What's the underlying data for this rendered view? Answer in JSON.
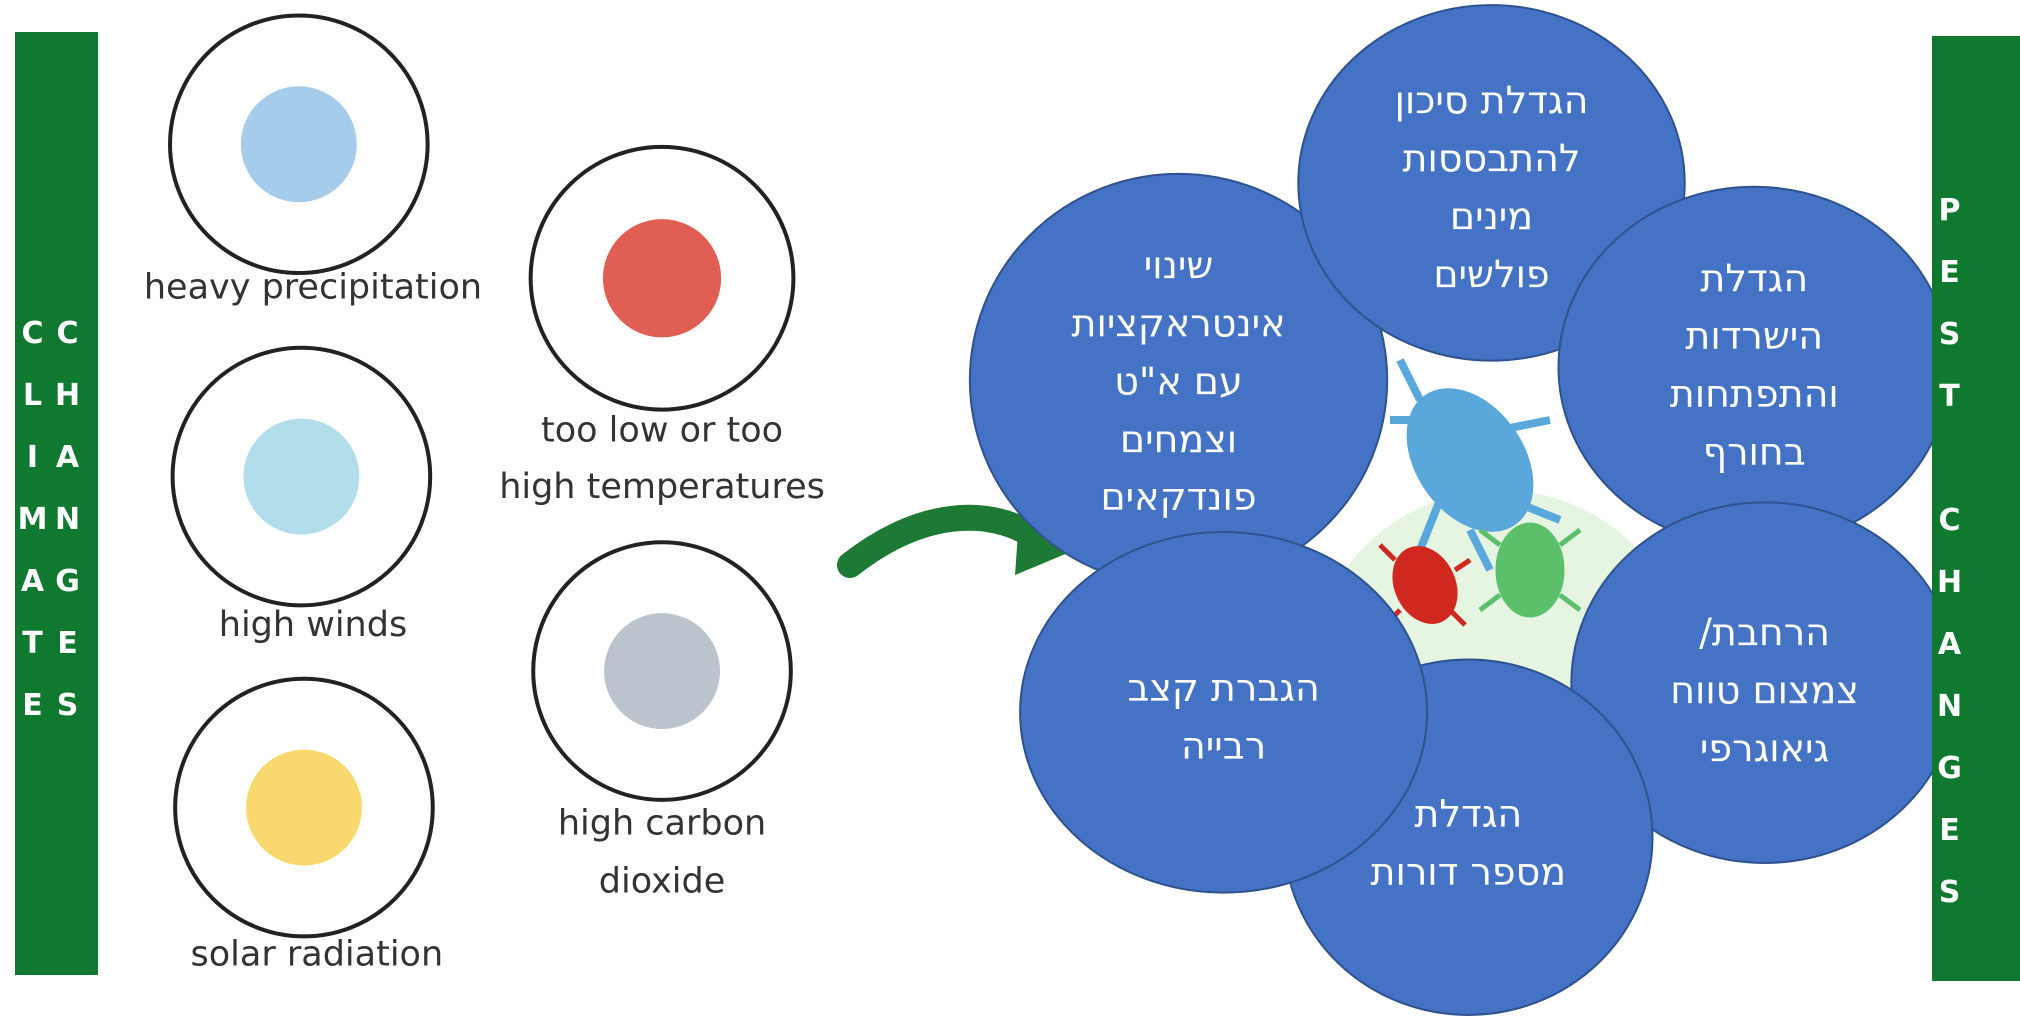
{
  "left_bar": {
    "text": "CLIMATE CHANGES"
  },
  "right_bar": {
    "text": "PEST CHANGES"
  },
  "climate_factors": [
    {
      "lines": [
        "heavy precipitation"
      ]
    },
    {
      "lines": [
        "high winds"
      ]
    },
    {
      "lines": [
        "solar radiation"
      ]
    },
    {
      "lines": [
        "too low or too",
        "high temperatures"
      ]
    },
    {
      "lines": [
        "high carbon",
        "dioxide"
      ]
    }
  ],
  "pest_changes": [
    {
      "lines": [
        "שינוי",
        "אינטראקציות",
        "עם א\"ט",
        "וצמחים",
        "פונדקאים"
      ]
    },
    {
      "lines": [
        "הגדלת סיכון",
        "להתבססות",
        "מינים",
        "פולשים"
      ]
    },
    {
      "lines": [
        "הגדלת",
        "הישרדות",
        "והתפתחות",
        "בחורף"
      ]
    },
    {
      "lines": [
        "הרחבת/",
        "צמצום טווח",
        "גיאוגרפי"
      ]
    },
    {
      "lines": [
        "הגדלת",
        "מספר דורות"
      ]
    },
    {
      "lines": [
        "הגברת קצב",
        "רבייה"
      ]
    }
  ]
}
